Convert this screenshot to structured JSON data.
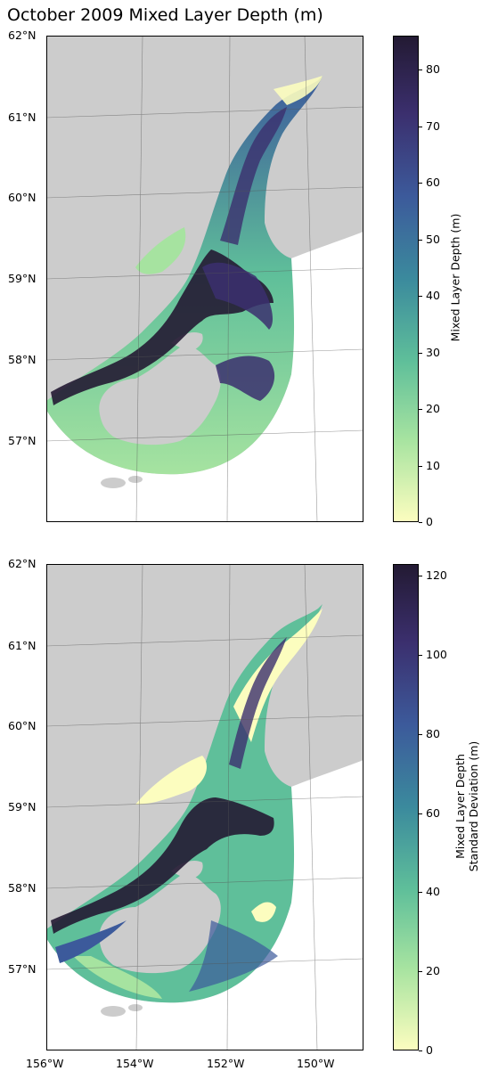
{
  "title": "October 2009 Mixed Layer Depth (m)",
  "maps": [
    {
      "id": "mld",
      "lat_ticks": [
        "62°N",
        "61°N",
        "60°N",
        "59°N",
        "58°N",
        "57°N"
      ],
      "colorbar": {
        "label_lines": [
          "Mixed Layer Depth (m)"
        ],
        "min": 0,
        "max": 86,
        "ticks": [
          "0",
          "10",
          "20",
          "30",
          "40",
          "50",
          "60",
          "70",
          "80"
        ]
      }
    },
    {
      "id": "mld_std",
      "lat_ticks": [
        "62°N",
        "61°N",
        "60°N",
        "59°N",
        "58°N",
        "57°N"
      ],
      "colorbar": {
        "label_lines": [
          "Mixed Layer Depth",
          "Standard Deviation (m)"
        ],
        "min": 0,
        "max": 123,
        "ticks": [
          "0",
          "20",
          "40",
          "60",
          "80",
          "100",
          "120"
        ]
      }
    }
  ],
  "lon_ticks": [
    "156°W",
    "154°W",
    "152°W",
    "150°W"
  ],
  "colormap": [
    "#fcfdbf",
    "#a6e3a0",
    "#5fbf9a",
    "#3b8a9d",
    "#3c5a9b",
    "#3b2f6e",
    "#231a33"
  ],
  "land_color": "#cccccc"
}
